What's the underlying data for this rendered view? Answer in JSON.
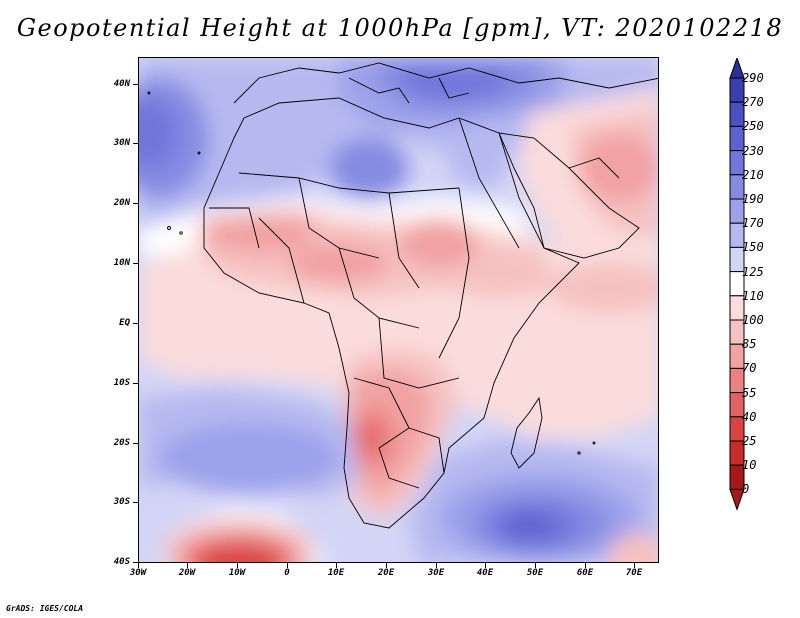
{
  "title": "Geopotential Height at 1000hPa [gpm], VT: 2020102218",
  "footer": "GrADS: IGES/COLA",
  "map": {
    "variable": "Geopotential Height",
    "level": "1000hPa",
    "units": "gpm",
    "valid_time": "2020102218",
    "lon_range": [
      -30,
      77
    ],
    "lat_range": [
      -40,
      45
    ],
    "lat_labels": [
      "40N",
      "30N",
      "20N",
      "10N",
      "EQ",
      "10S",
      "20S",
      "30S",
      "40S"
    ],
    "lon_labels": [
      "30W",
      "20W",
      "10W",
      "0",
      "10E",
      "20E",
      "30E",
      "40E",
      "50E",
      "60E",
      "70E"
    ]
  },
  "colorbar": {
    "levels": [
      "290",
      "270",
      "250",
      "230",
      "210",
      "190",
      "170",
      "150",
      "125",
      "110",
      "100",
      "85",
      "70",
      "55",
      "40",
      "25",
      "10",
      "0"
    ],
    "colors": {
      "c290": "#2b2f9c",
      "c270": "#3a3fb0",
      "c250": "#4b50c2",
      "c230": "#5c62cf",
      "c210": "#7076da",
      "c190": "#868be2",
      "c170": "#9da1ea",
      "c150": "#b6b9f0",
      "c125": "#d3d5f6",
      "c110": "#ffffff",
      "c100": "#fbdcdc",
      "c85": "#f6c1c1",
      "c70": "#f1a2a2",
      "c55": "#eb8181",
      "c40": "#e46161",
      "c25": "#db4343",
      "c10": "#c92a2a",
      "c0": "#a91818"
    }
  }
}
